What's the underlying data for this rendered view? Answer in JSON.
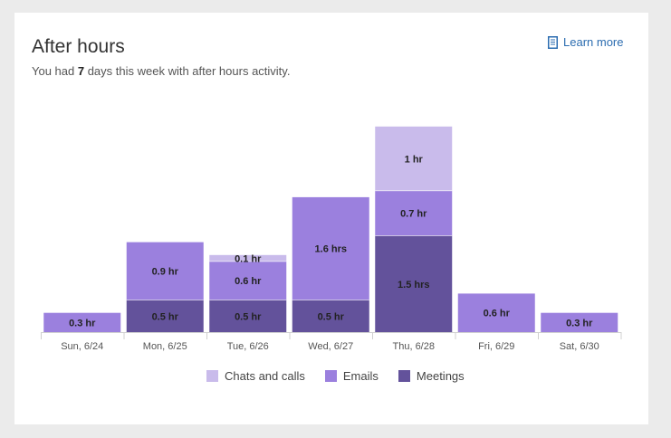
{
  "card": {
    "title": "After hours",
    "subtitle_prefix": "You had ",
    "subtitle_count": "7",
    "subtitle_suffix": " days this week with after hours activity.",
    "learn_more": "Learn more",
    "learn_more_icon": "document-icon"
  },
  "colors": {
    "chats_and_calls": "#c9bbeb",
    "emails": "#9b80de",
    "meetings": "#63529b",
    "link": "#2b6cb0"
  },
  "chart_data": {
    "type": "bar",
    "stacked": true,
    "categories": [
      "Sun, 6/24",
      "Mon, 6/25",
      "Tue, 6/26",
      "Wed, 6/27",
      "Thu, 6/28",
      "Fri, 6/29",
      "Sat, 6/30"
    ],
    "series": [
      {
        "name": "Meetings",
        "values": [
          0,
          0.5,
          0.5,
          0.5,
          1.5,
          0,
          0
        ],
        "labels": [
          "",
          "0.5 hr",
          "0.5 hr",
          "0.5 hr",
          "1.5 hrs",
          "",
          ""
        ]
      },
      {
        "name": "Emails",
        "values": [
          0.3,
          0.9,
          0.6,
          1.6,
          0.7,
          0.6,
          0.3
        ],
        "labels": [
          "0.3 hr",
          "0.9 hr",
          "0.6 hr",
          "1.6 hrs",
          "0.7 hr",
          "0.6 hr",
          "0.3 hr"
        ]
      },
      {
        "name": "Chats and calls",
        "values": [
          0,
          0,
          0.1,
          0,
          1,
          0,
          0
        ],
        "labels": [
          "",
          "",
          "0.1 hr",
          "",
          "1 hr",
          "",
          ""
        ]
      }
    ],
    "legend": [
      "Chats and calls",
      "Emails",
      "Meetings"
    ],
    "legend_position": "bottom",
    "grid": false,
    "ylim": [
      0,
      3.2
    ]
  }
}
